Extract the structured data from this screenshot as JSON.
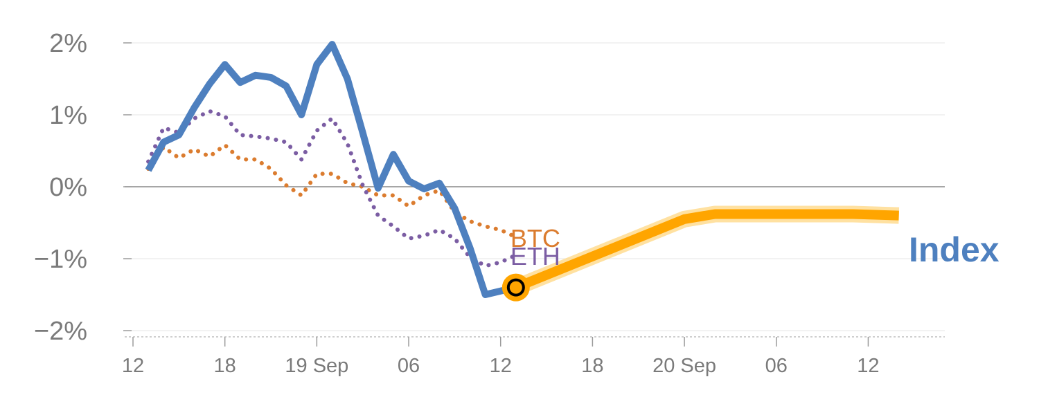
{
  "chart_data": {
    "type": "line",
    "title": "",
    "xlabel": "",
    "ylabel": "",
    "y_unit": "%",
    "ylim": [
      -2.1,
      2.1
    ],
    "y_ticks": [
      2,
      1,
      0,
      -1,
      -2
    ],
    "y_tick_labels": [
      "2%",
      "1%",
      "0%",
      "−1%",
      "−2%"
    ],
    "x_ticks": [
      {
        "t": "2023-09-18T12:00",
        "label": "12"
      },
      {
        "t": "2023-09-18T18:00",
        "label": "18"
      },
      {
        "t": "2023-09-19T00:00",
        "label": "19 Sep"
      },
      {
        "t": "2023-09-19T06:00",
        "label": "06"
      },
      {
        "t": "2023-09-19T12:00",
        "label": "12"
      },
      {
        "t": "2023-09-19T18:00",
        "label": "18"
      },
      {
        "t": "2023-09-20T00:00",
        "label": "20 Sep"
      },
      {
        "t": "2023-09-20T06:00",
        "label": "06"
      },
      {
        "t": "2023-09-20T12:00",
        "label": "12"
      }
    ],
    "xlim": [
      "2023-09-18T12:00",
      "2023-09-20T17:00"
    ],
    "grid": true,
    "series": [
      {
        "name": "Index",
        "color": "#4e80bf",
        "style": "solid",
        "x": [
          "2023-09-18T13:00",
          "2023-09-18T14:00",
          "2023-09-18T15:00",
          "2023-09-18T16:00",
          "2023-09-18T17:00",
          "2023-09-18T18:00",
          "2023-09-18T19:00",
          "2023-09-18T20:00",
          "2023-09-18T21:00",
          "2023-09-18T22:00",
          "2023-09-18T23:00",
          "2023-09-19T00:00",
          "2023-09-19T01:00",
          "2023-09-19T02:00",
          "2023-09-19T03:00",
          "2023-09-19T04:00",
          "2023-09-19T05:00",
          "2023-09-19T06:00",
          "2023-09-19T07:00",
          "2023-09-19T08:00",
          "2023-09-19T09:00",
          "2023-09-19T10:00",
          "2023-09-19T11:00",
          "2023-09-19T12:00",
          "2023-09-19T13:00"
        ],
        "values": [
          0.23,
          0.62,
          0.72,
          1.1,
          1.43,
          1.7,
          1.45,
          1.55,
          1.52,
          1.4,
          1.0,
          1.7,
          1.98,
          1.5,
          0.75,
          -0.02,
          0.45,
          0.08,
          -0.03,
          0.05,
          -0.3,
          -0.85,
          -1.5,
          -1.45,
          -1.4
        ]
      },
      {
        "name": "BTC",
        "color": "#db7c2f",
        "style": "dotted",
        "x": [
          "2023-09-18T13:00",
          "2023-09-18T14:00",
          "2023-09-18T15:00",
          "2023-09-18T16:00",
          "2023-09-18T17:00",
          "2023-09-18T18:00",
          "2023-09-18T19:00",
          "2023-09-18T20:00",
          "2023-09-18T21:00",
          "2023-09-18T22:00",
          "2023-09-18T23:00",
          "2023-09-19T00:00",
          "2023-09-19T01:00",
          "2023-09-19T02:00",
          "2023-09-19T03:00",
          "2023-09-19T04:00",
          "2023-09-19T05:00",
          "2023-09-19T06:00",
          "2023-09-19T07:00",
          "2023-09-19T08:00",
          "2023-09-19T09:00",
          "2023-09-19T10:00",
          "2023-09-19T11:00",
          "2023-09-19T12:00",
          "2023-09-19T13:00"
        ],
        "values": [
          0.25,
          0.55,
          0.4,
          0.52,
          0.42,
          0.58,
          0.38,
          0.38,
          0.25,
          0.02,
          -0.12,
          0.18,
          0.18,
          0.05,
          0.0,
          -0.12,
          -0.12,
          -0.27,
          -0.12,
          -0.05,
          -0.35,
          -0.48,
          -0.55,
          -0.6,
          -0.7
        ]
      },
      {
        "name": "ETH",
        "color": "#7b5da3",
        "style": "dotted",
        "x": [
          "2023-09-18T13:00",
          "2023-09-18T14:00",
          "2023-09-18T15:00",
          "2023-09-18T16:00",
          "2023-09-18T17:00",
          "2023-09-18T18:00",
          "2023-09-18T19:00",
          "2023-09-18T20:00",
          "2023-09-18T21:00",
          "2023-09-18T22:00",
          "2023-09-18T23:00",
          "2023-09-19T00:00",
          "2023-09-19T01:00",
          "2023-09-19T02:00",
          "2023-09-19T03:00",
          "2023-09-19T04:00",
          "2023-09-19T05:00",
          "2023-09-19T06:00",
          "2023-09-19T07:00",
          "2023-09-19T08:00",
          "2023-09-19T09:00",
          "2023-09-19T10:00",
          "2023-09-19T11:00",
          "2023-09-19T12:00",
          "2023-09-19T13:00"
        ],
        "values": [
          0.35,
          0.82,
          0.75,
          0.95,
          1.05,
          0.98,
          0.72,
          0.7,
          0.67,
          0.62,
          0.38,
          0.78,
          0.95,
          0.6,
          0.02,
          -0.4,
          -0.55,
          -0.72,
          -0.68,
          -0.6,
          -0.72,
          -0.98,
          -1.1,
          -1.05,
          -0.95
        ]
      },
      {
        "name": "Index",
        "color": "#ffa500",
        "style": "projection",
        "x": [
          "2023-09-19T13:00",
          "2023-09-20T00:00",
          "2023-09-20T02:00",
          "2023-09-20T11:00",
          "2023-09-20T14:00"
        ],
        "values": [
          -1.4,
          -0.45,
          -0.38,
          -0.38,
          -0.4
        ]
      }
    ],
    "marker": {
      "t": "2023-09-19T13:00",
      "value": -1.4,
      "fill": "#ffa500",
      "stroke": "#000000"
    },
    "labels": {
      "btc": {
        "text": "BTC",
        "color": "#db7c2f"
      },
      "eth": {
        "text": "ETH",
        "color": "#7b5da3"
      },
      "index": {
        "text": "Index",
        "color": "#4e80bf"
      }
    }
  }
}
